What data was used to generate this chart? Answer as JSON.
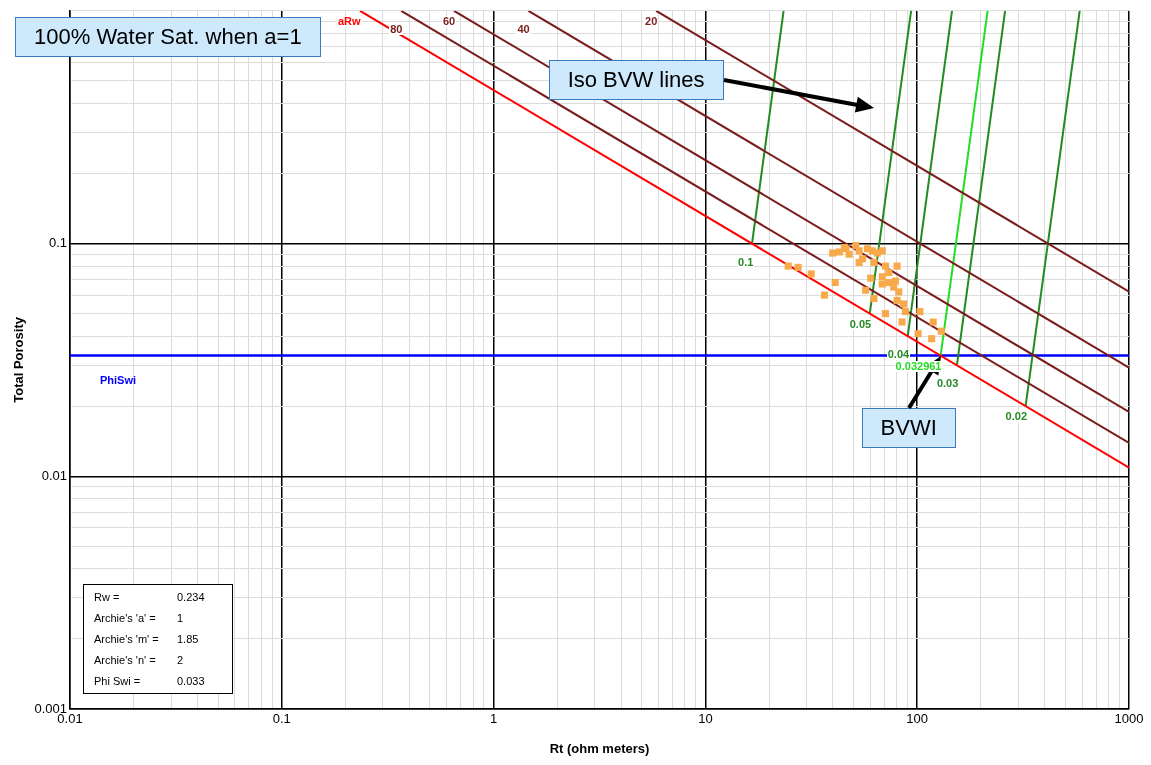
{
  "chart_data": {
    "type": "line",
    "xlabel": "Rt (ohm meters)",
    "ylabel": "Total Porosity",
    "log": "xy",
    "grid": true,
    "legend": false,
    "xlim": [
      0.01,
      1000
    ],
    "ylim": [
      0.001,
      1
    ],
    "xticks": [
      0.01,
      {
        "value": 0.02,
        "label": null
      },
      {
        "value": 0.03,
        "label": null
      },
      {
        "value": 0.04,
        "label": null
      },
      {
        "value": 0.05,
        "label": null
      },
      {
        "value": 0.06,
        "label": null
      },
      {
        "value": 0.07,
        "label": null
      },
      {
        "value": 0.08,
        "label": null
      },
      {
        "value": 0.09,
        "label": null
      },
      0.1,
      {
        "value": 0.2,
        "label": null
      },
      {
        "value": 0.3,
        "label": null
      },
      {
        "value": 0.4,
        "label": null
      },
      {
        "value": 0.5,
        "label": null
      },
      {
        "value": 0.6,
        "label": null
      },
      {
        "value": 0.7,
        "label": null
      },
      {
        "value": 0.8,
        "label": null
      },
      {
        "value": 0.9,
        "label": null
      },
      1,
      {
        "value": 2,
        "label": null
      },
      {
        "value": 3,
        "label": null
      },
      {
        "value": 4,
        "label": null
      },
      {
        "value": 5,
        "label": null
      },
      {
        "value": 6,
        "label": null
      },
      {
        "value": 7,
        "label": null
      },
      {
        "value": 8,
        "label": null
      },
      {
        "value": 9,
        "label": null
      },
      10,
      {
        "value": 20,
        "label": null
      },
      {
        "value": 30,
        "label": null
      },
      {
        "value": 40,
        "label": null
      },
      {
        "value": 50,
        "label": null
      },
      {
        "value": 60,
        "label": null
      },
      {
        "value": 70,
        "label": null
      },
      {
        "value": 80,
        "label": null
      },
      {
        "value": 90,
        "label": null
      },
      100,
      {
        "value": 200,
        "label": null
      },
      {
        "value": 300,
        "label": null
      },
      {
        "value": 400,
        "label": null
      },
      {
        "value": 500,
        "label": null
      },
      {
        "value": 600,
        "label": null
      },
      {
        "value": 700,
        "label": null
      },
      {
        "value": 800,
        "label": null
      },
      {
        "value": 900,
        "label": null
      },
      1000
    ],
    "yticks": [
      0.001,
      {
        "value": 0.002,
        "label": null
      },
      {
        "value": 0.003,
        "label": null
      },
      {
        "value": 0.004,
        "label": null
      },
      {
        "value": 0.005,
        "label": null
      },
      {
        "value": 0.006,
        "label": null
      },
      {
        "value": 0.007,
        "label": null
      },
      {
        "value": 0.008,
        "label": null
      },
      {
        "value": 0.009,
        "label": null
      },
      0.01,
      {
        "value": 0.02,
        "label": null
      },
      {
        "value": 0.03,
        "label": null
      },
      {
        "value": 0.04,
        "label": null
      },
      {
        "value": 0.05,
        "label": null
      },
      {
        "value": 0.06,
        "label": null
      },
      {
        "value": 0.07,
        "label": null
      },
      {
        "value": 0.08,
        "label": null
      },
      {
        "value": 0.09,
        "label": null
      },
      0.1,
      {
        "value": 0.2,
        "label": null
      },
      {
        "value": 0.3,
        "label": null
      },
      {
        "value": 0.4,
        "label": null
      },
      {
        "value": 0.5,
        "label": null
      },
      {
        "value": 0.6,
        "label": null
      },
      {
        "value": 0.7,
        "label": null
      },
      {
        "value": 0.8,
        "label": null
      },
      {
        "value": 0.9,
        "label": null
      },
      {
        "value": 1,
        "label": null
      }
    ],
    "series": [
      {
        "name": "aRw",
        "type": "line",
        "color": "#ff0000",
        "x": [
          0.234,
          1000
        ],
        "values": [
          1,
          0.0109
        ]
      },
      {
        "name": "80",
        "type": "line",
        "color": "#7b1c1c",
        "x": [
          0.366,
          1000
        ],
        "values": [
          1,
          0.0139
        ]
      },
      {
        "name": "60",
        "type": "line",
        "color": "#7b1c1c",
        "x": [
          0.65,
          1000
        ],
        "values": [
          1,
          0.0189
        ]
      },
      {
        "name": "40",
        "type": "line",
        "color": "#7b1c1c",
        "x": [
          1.46,
          1000
        ],
        "values": [
          1,
          0.0293
        ]
      },
      {
        "name": "20",
        "type": "line",
        "color": "#7b1c1c",
        "x": [
          5.85,
          1000
        ],
        "values": [
          1,
          0.0621
        ]
      },
      {
        "name": "0.1",
        "type": "line",
        "color": "#228b22",
        "x": [
          16.6,
          23.4
        ],
        "values": [
          0.1,
          1
        ]
      },
      {
        "name": "0.05",
        "type": "line",
        "color": "#228b22",
        "x": [
          59.7,
          93.6
        ],
        "values": [
          0.05,
          1
        ]
      },
      {
        "name": "0.04",
        "type": "line",
        "color": "#228b22",
        "x": [
          90.2,
          146
        ],
        "values": [
          0.04,
          1
        ]
      },
      {
        "name": "0.032961",
        "type": "line",
        "color": "#22dd22",
        "x": [
          129,
          215
        ],
        "values": [
          0.032961,
          1
        ]
      },
      {
        "name": "0.03",
        "type": "line",
        "color": "#228b22",
        "x": [
          154,
          260
        ],
        "values": [
          0.03,
          1
        ]
      },
      {
        "name": "0.02",
        "type": "line",
        "color": "#228b22",
        "x": [
          325,
          585
        ],
        "values": [
          0.02,
          1
        ]
      },
      {
        "type": "scatter",
        "marker": "square",
        "color": "#f8a94a",
        "x": [
          24.6,
          27.4,
          31.6,
          36.5,
          41,
          39.9,
          42.9,
          45.3,
          47.7,
          51.3,
          53.2,
          55.2,
          58.2,
          61.4,
          64.8,
          68.4,
          57.1,
          62.5,
          68.4,
          70.8,
          68.4,
          73.4,
          78.9,
          80.4,
          77.5,
          81.8,
          80.4,
          86.3,
          87.9,
          70.8,
          84.8,
          103,
          101,
          119,
          117,
          130,
          62.5,
          46.1,
          53.2,
          60.3,
          73.4
        ],
        "values": [
          0.08,
          0.079,
          0.074,
          0.06,
          0.068,
          0.091,
          0.092,
          0.096,
          0.09,
          0.098,
          0.093,
          0.086,
          0.095,
          0.093,
          0.091,
          0.093,
          0.063,
          0.058,
          0.072,
          0.08,
          0.067,
          0.068,
          0.069,
          0.08,
          0.065,
          0.062,
          0.057,
          0.055,
          0.051,
          0.05,
          0.046,
          0.051,
          0.041,
          0.046,
          0.039,
          0.042,
          0.083,
          0.095,
          0.083,
          0.071,
          0.075
        ]
      }
    ],
    "ref_lines": [
      {
        "axis": "y",
        "value": 0.033,
        "label": "PhiSwi",
        "color": "#0000ff"
      }
    ],
    "annotations": [
      "100% Water Sat. when a=1",
      "Iso BVW lines",
      {
        "text": "BVWI",
        "x": 129,
        "y": 0.033
      },
      "Rw =",
      "0.234",
      "Archie's 'a' =",
      "1",
      "Archie's 'm' =",
      "1.85",
      "Archie's 'n' =",
      "2",
      "Phi Swi =",
      "0.033"
    ]
  }
}
